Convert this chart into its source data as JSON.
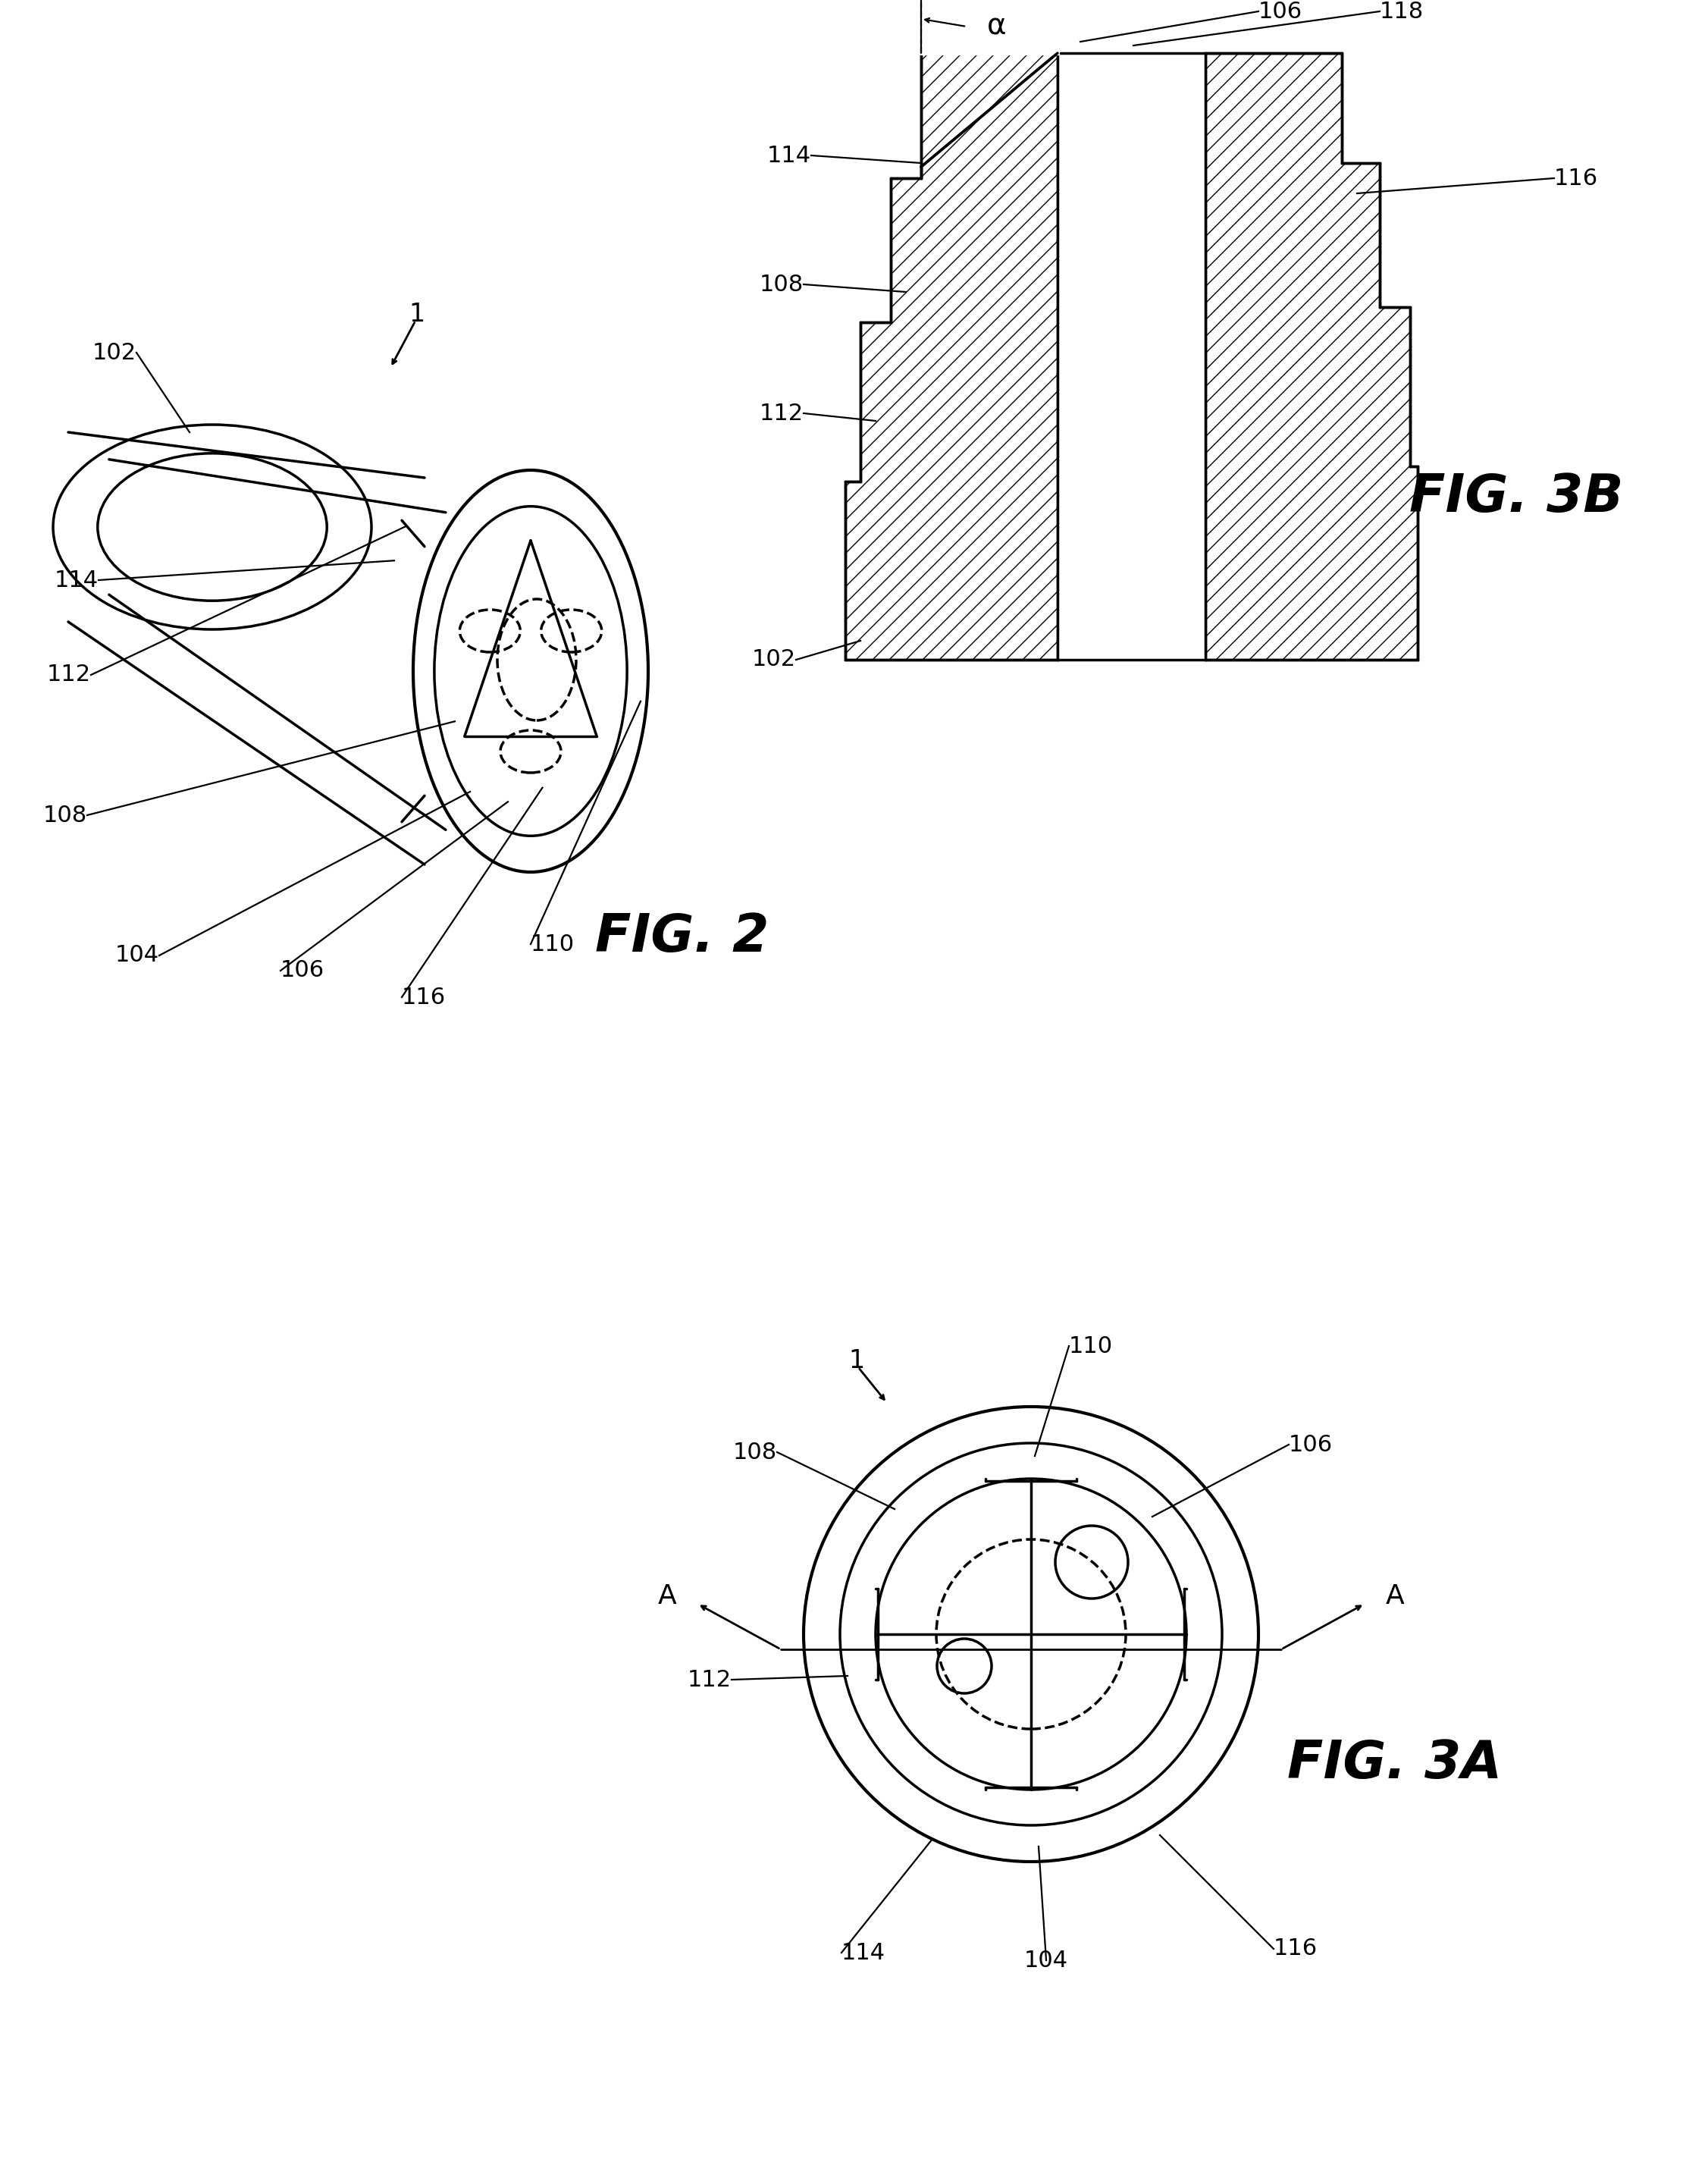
{
  "bg_color": "#ffffff",
  "lc": "#000000",
  "fig2_label": "FIG. 2",
  "fig3a_label": "FIG. 3A",
  "fig3b_label": "FIG. 3B",
  "alpha_symbol": "α"
}
